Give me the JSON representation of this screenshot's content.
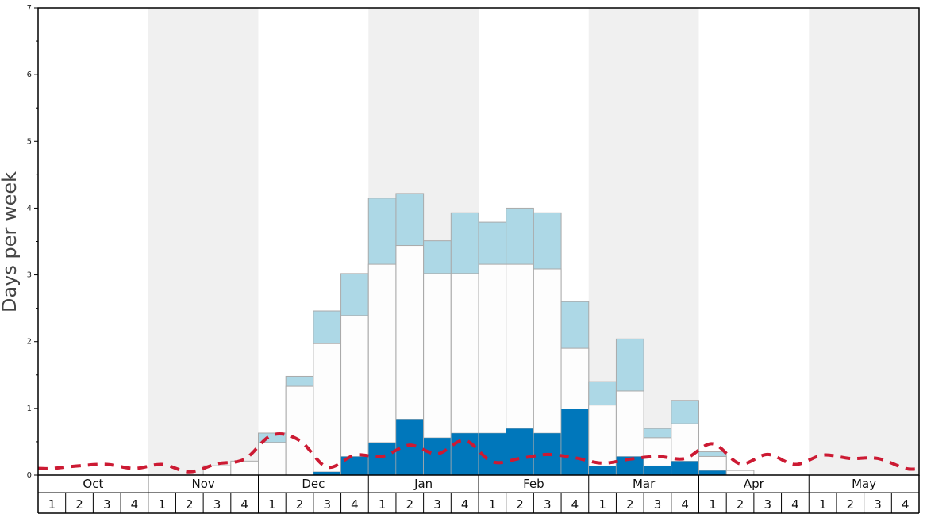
{
  "chart_data": {
    "type": "bar",
    "ylabel": "Days per week",
    "ylim": [
      0,
      7
    ],
    "yticks": [
      "0",
      "1",
      "2",
      "3",
      "4",
      "5",
      "6",
      "7"
    ],
    "months": [
      "Oct",
      "Nov",
      "Dec",
      "Jan",
      "Feb",
      "Mar",
      "Apr",
      "May"
    ],
    "weeks": [
      "1",
      "2",
      "3",
      "4"
    ],
    "colors": {
      "top": "#add8e6",
      "middle": "#fdfdfd",
      "bottom": "#0077bb",
      "line": "#cc1a33",
      "shade": "#f0f0f0",
      "bar_edge": "#aaaaaa"
    },
    "series": [
      {
        "values": [
          0,
          0,
          0,
          0,
          0,
          0,
          0,
          0,
          0,
          0,
          0.05,
          0.28,
          0.49,
          0.84,
          0.56,
          0.63,
          0.63,
          0.7,
          0.63,
          0.99,
          0.14,
          0.28,
          0.14,
          0.21,
          0.07,
          0,
          0,
          0,
          0,
          0,
          0,
          0
        ]
      },
      {
        "values": [
          0,
          0,
          0,
          0,
          0,
          0,
          0.14,
          0.21,
          0.49,
          1.33,
          1.97,
          2.39,
          3.16,
          3.44,
          3.02,
          3.02,
          3.16,
          3.16,
          3.09,
          1.9,
          1.05,
          1.26,
          0.56,
          0.77,
          0.28,
          0.07,
          0,
          0,
          0,
          0,
          0,
          0
        ]
      },
      {
        "values": [
          0,
          0,
          0,
          0,
          0,
          0,
          0,
          0,
          0.63,
          1.48,
          2.46,
          3.02,
          4.15,
          4.22,
          3.51,
          3.93,
          3.79,
          4.0,
          3.93,
          2.6,
          1.4,
          2.04,
          0.7,
          1.12,
          0.35,
          0,
          0,
          0,
          0,
          0,
          0,
          0
        ]
      },
      {
        "values": [
          0.1,
          0.14,
          0.16,
          0.1,
          0.16,
          0.05,
          0.17,
          0.24,
          0.6,
          0.52,
          0.12,
          0.3,
          0.28,
          0.45,
          0.32,
          0.52,
          0.2,
          0.25,
          0.31,
          0.26,
          0.18,
          0.24,
          0.28,
          0.25,
          0.47,
          0.17,
          0.31,
          0.16,
          0.3,
          0.25,
          0.25,
          0.1
        ]
      }
    ]
  }
}
